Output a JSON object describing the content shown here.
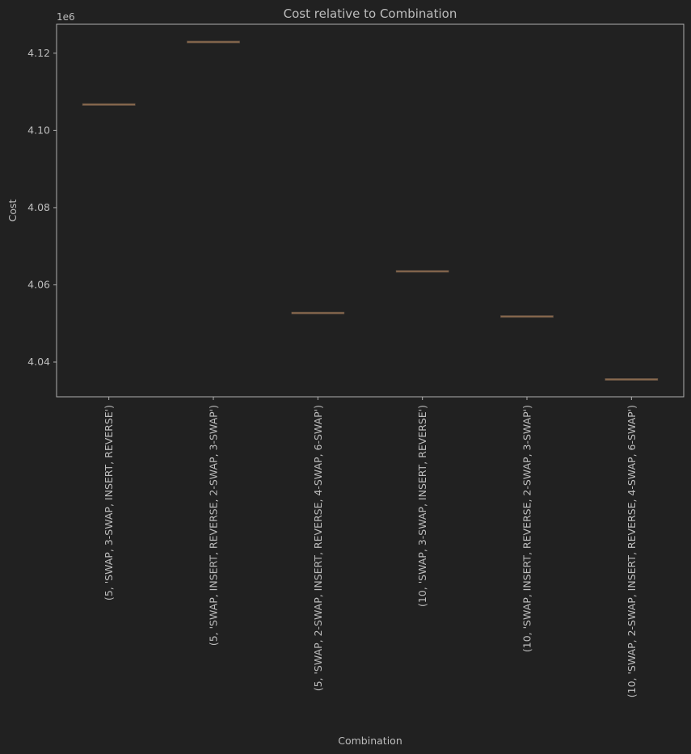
{
  "colors": {
    "background": "#212121",
    "text": "#bdbdbd",
    "axes_frame": "#b0b0b0",
    "box_median": "#8a6a4e"
  },
  "chart_data": {
    "type": "box",
    "title": "Cost relative to Combination",
    "xlabel": "Combination",
    "ylabel": "Cost",
    "y_offset_label": "1e6",
    "y_scale_factor": 1000000,
    "ylim": [
      4.031,
      4.1275
    ],
    "yticks": [
      4.04,
      4.06,
      4.08,
      4.1,
      4.12
    ],
    "ytick_labels": [
      "4.04",
      "4.06",
      "4.08",
      "4.10",
      "4.12"
    ],
    "grid": false,
    "categories": [
      "(5, 'SWAP, 3-SWAP, INSERT, REVERSE')",
      "(5, 'SWAP, INSERT, REVERSE, 2-SWAP, 3-SWAP')",
      "(5, 'SWAP, 2-SWAP, INSERT, REVERSE, 4-SWAP, 6-SWAP')",
      "(10, 'SWAP, 3-SWAP, INSERT, REVERSE')",
      "(10, 'SWAP, INSERT, REVERSE, 2-SWAP, 3-SWAP')",
      "(10, 'SWAP, 2-SWAP, INSERT, REVERSE, 4-SWAP, 6-SWAP')"
    ],
    "values": [
      4.1067,
      4.1229,
      4.0527,
      4.0635,
      4.0518,
      4.0355
    ]
  }
}
